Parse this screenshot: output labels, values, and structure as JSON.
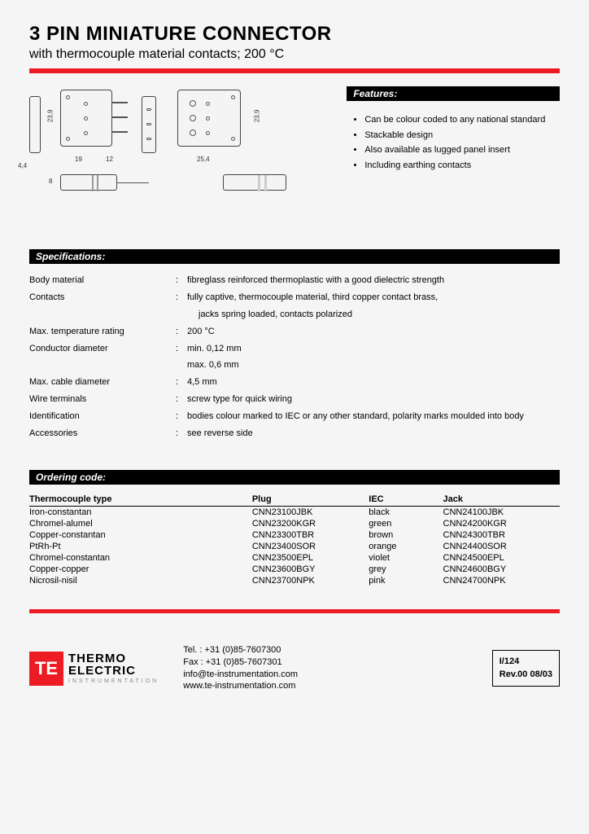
{
  "title": "3 PIN MINIATURE CONNECTOR",
  "subtitle": "with thermocouple material contacts; 200 °C",
  "features_label": "Features:",
  "features": [
    "Can be colour coded to any national standard",
    "Stackable design",
    "Also available as lugged panel insert",
    "Including earthing contacts"
  ],
  "dims": {
    "h": "23,9",
    "w1": "19",
    "w2": "12",
    "w3": "25,4",
    "t": "4,4",
    "side_h": "8"
  },
  "specs_label": "Specifications:",
  "specs": [
    {
      "label": "Body material",
      "value": "fibreglass reinforced thermoplastic with a good dielectric strength"
    },
    {
      "label": "Contacts",
      "value": "fully captive, thermocouple material, third copper contact brass,"
    },
    {
      "label": "",
      "value": "jacks spring loaded, contacts polarized",
      "indent": true,
      "nocolon": true
    },
    {
      "label": "Max. temperature rating",
      "value": "200 °C"
    },
    {
      "label": "Conductor diameter",
      "value": "min. 0,12 mm"
    },
    {
      "label": "",
      "value": "max. 0,6 mm",
      "nocolon": true
    },
    {
      "label": "Max. cable diameter",
      "value": "4,5 mm"
    },
    {
      "label": "Wire terminals",
      "value": "screw type for quick wiring"
    },
    {
      "label": "Identification",
      "value": "bodies colour marked to IEC or any other standard, polarity marks moulded into body"
    },
    {
      "label": "Accessories",
      "value": "see reverse side"
    }
  ],
  "order_label": "Ordering code:",
  "order_headers": {
    "type": "Thermocouple type",
    "plug": "Plug",
    "iec": "IEC",
    "jack": "Jack"
  },
  "order_rows": [
    {
      "type": "Iron-constantan",
      "plug": "CNN23100JBK",
      "iec": "black",
      "jack": "CNN24100JBK"
    },
    {
      "type": "Chromel-alumel",
      "plug": "CNN23200KGR",
      "iec": "green",
      "jack": "CNN24200KGR"
    },
    {
      "type": "Copper-constantan",
      "plug": "CNN23300TBR",
      "iec": "brown",
      "jack": "CNN24300TBR"
    },
    {
      "type": "PtRh-Pt",
      "plug": "CNN23400SOR",
      "iec": "orange",
      "jack": "CNN24400SOR"
    },
    {
      "type": "Chromel-constantan",
      "plug": "CNN23500EPL",
      "iec": "violet",
      "jack": "CNN24500EPL"
    },
    {
      "type": "Copper-copper",
      "plug": "CNN23600BGY",
      "iec": "grey",
      "jack": "CNN24600BGY"
    },
    {
      "type": "Nicrosil-nisil",
      "plug": "CNN23700NPK",
      "iec": "pink",
      "jack": "CNN24700NPK"
    }
  ],
  "logo": {
    "mark": "TE",
    "line1": "THERMO",
    "line2": "ELECTRIC",
    "line3": "INSTRUMENTATION"
  },
  "contact": {
    "tel": "Tel. : +31 (0)85-7607300",
    "fax": "Fax : +31 (0)85-7607301",
    "email": "info@te-instrumentation.com",
    "web": "www.te-instrumentation.com"
  },
  "rev": {
    "code": "I/124",
    "line": "Rev.00   08/03"
  },
  "colors": {
    "red": "#ed1c24",
    "black": "#000000"
  }
}
